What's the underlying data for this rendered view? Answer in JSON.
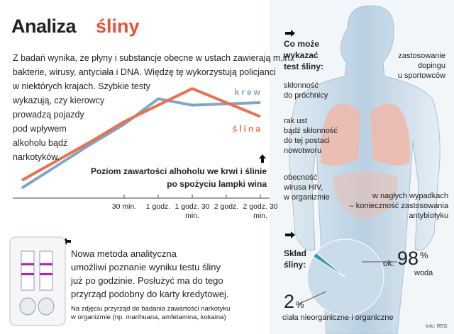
{
  "title": [
    "Analiza",
    "śliny"
  ],
  "intro": [
    "Z badań wynika, że płyny i substancje obecne w ustach zawierają m.in.:",
    "bakterie, wirusy, antyciała i DNA. Więdzę tę wykorzystują policjanci",
    "w niektórych krajach. Szybkie testy",
    "wykazują, czy kierowcy",
    "prowadzą pojazdy",
    "pod wpływem",
    "alkoholu bądź",
    "narkotyków."
  ],
  "chart_data": [
    {
      "type": "line",
      "title": [
        "Poziom zawartości alhoholu we krwi i ślinie",
        "po spożyciu lampki wina"
      ],
      "categories": [
        null,
        null,
        null,
        "30 min.",
        "1 godz.",
        "1 godz. 30 min.",
        "2 godz.",
        "2 godz. 30 min."
      ],
      "ylim": [
        0,
        100
      ],
      "series": [
        {
          "name": "krew",
          "color": "#7fa6c6",
          "values": [
            8,
            25,
            42,
            58,
            78,
            73,
            74,
            75
          ]
        },
        {
          "name": "ślina",
          "color": "#e8724e",
          "values": [
            14,
            29,
            44,
            60,
            73,
            86,
            75,
            64
          ]
        }
      ]
    },
    {
      "type": "pie",
      "title": [
        "Skład",
        "śliny:"
      ],
      "unit": "%",
      "prefix": "ok.",
      "series": [
        {
          "name": "woda",
          "color": "#c9dcea",
          "value": 98
        },
        {
          "name": "ciała nieorganiczne i organiczne",
          "color": "#3a9bb0",
          "value": 2
        }
      ]
    }
  ],
  "question": [
    "Co może",
    "wykazać",
    "test śliny:"
  ],
  "findings": [
    [
      "skłonność",
      "do próchnicy"
    ],
    [
      "rak ust",
      "bądź skłonność",
      "do tej postaci",
      "nowotworu"
    ],
    [
      "obecność",
      "wirusa HIV,",
      "w organizmie"
    ],
    [
      "zastosowanie",
      "dopingu",
      "u sportowców"
    ],
    [
      "w nagłych wypadkach",
      "– konieczność zastosowania",
      "antybiotyku"
    ]
  ],
  "method": [
    "Nowa metoda analityczna",
    "umożliwi poznanie wyniku testu śliny",
    "już po godzinie. Posłużyć ma do tego",
    "przyrząd podobny do karty kredytowej."
  ],
  "caption": [
    "Na zdjęciu przyrząd do badania zawartości narkotyku",
    "w organizmie (np. marihuana, amfetamina, kokaina)"
  ],
  "credit": "Info: REG"
}
